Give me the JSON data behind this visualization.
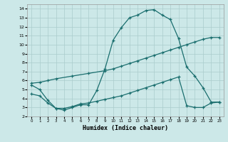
{
  "xlabel": "Humidex (Indice chaleur)",
  "bg_color": "#cce8e8",
  "grid_color": "#aacccc",
  "line_color": "#1a6e6e",
  "xlim": [
    -0.5,
    23.5
  ],
  "ylim": [
    2.0,
    14.5
  ],
  "yticks": [
    2,
    3,
    4,
    5,
    6,
    7,
    8,
    9,
    10,
    11,
    12,
    13,
    14
  ],
  "xticks": [
    0,
    1,
    2,
    3,
    4,
    5,
    6,
    7,
    8,
    9,
    10,
    11,
    12,
    13,
    14,
    15,
    16,
    17,
    18,
    19,
    20,
    21,
    22,
    23
  ],
  "line1_x": [
    0,
    1,
    2,
    3,
    4,
    5,
    6,
    7,
    8,
    9,
    10,
    11,
    12,
    13,
    14,
    15,
    16,
    17,
    18,
    19,
    20,
    21,
    22,
    23
  ],
  "line1_y": [
    5.5,
    5.0,
    3.8,
    2.9,
    2.7,
    3.0,
    3.3,
    3.3,
    4.9,
    7.3,
    10.5,
    11.9,
    13.0,
    13.3,
    13.8,
    13.9,
    13.3,
    12.8,
    10.7,
    7.5,
    6.5,
    5.2,
    3.6,
    3.6
  ],
  "line2_x": [
    0,
    1,
    2,
    3,
    5,
    7,
    9,
    10,
    11,
    12,
    13,
    14,
    15,
    16,
    17,
    18,
    19,
    20,
    21,
    22,
    23
  ],
  "line2_y": [
    5.7,
    5.8,
    6.0,
    6.2,
    6.5,
    6.8,
    7.1,
    7.3,
    7.6,
    7.9,
    8.2,
    8.5,
    8.8,
    9.1,
    9.4,
    9.7,
    10.0,
    10.3,
    10.6,
    10.8,
    10.8
  ],
  "line3_x": [
    0,
    1,
    2,
    3,
    4,
    5,
    6,
    7,
    8,
    9,
    10,
    11,
    12,
    13,
    14,
    15,
    16,
    17,
    18,
    19,
    20,
    21,
    22,
    23
  ],
  "line3_y": [
    4.5,
    4.3,
    3.5,
    2.9,
    2.9,
    3.1,
    3.4,
    3.5,
    3.7,
    3.9,
    4.1,
    4.3,
    4.6,
    4.9,
    5.2,
    5.5,
    5.8,
    6.1,
    6.4,
    3.2,
    3.0,
    3.0,
    3.5,
    3.6
  ]
}
